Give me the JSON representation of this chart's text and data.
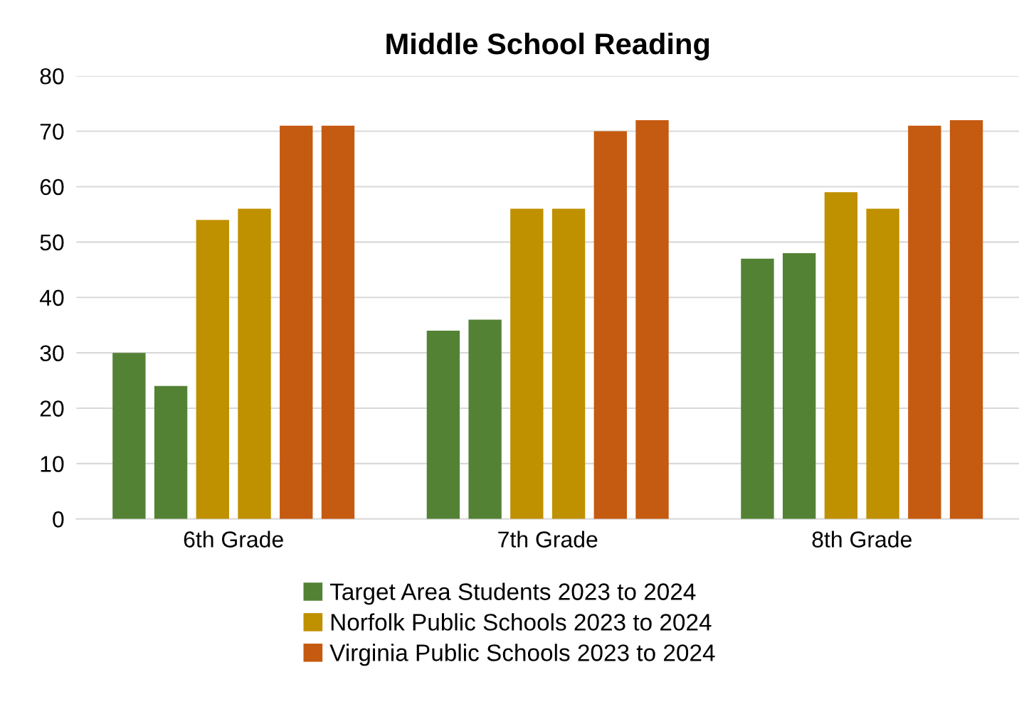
{
  "chart_data": {
    "type": "bar",
    "title": "Middle School Reading",
    "categories": [
      "6th Grade",
      "7th Grade",
      "8th Grade"
    ],
    "series": [
      {
        "name": "Target Area Students 2023 to 2024",
        "color": "#548235",
        "values": [
          30,
          34,
          47
        ]
      },
      {
        "color": "#548235",
        "values": [
          24,
          36,
          48
        ]
      },
      {
        "name": "Norfolk Public Schools 2023 to 2024",
        "color": "#bf9000",
        "values": [
          54,
          56,
          59
        ]
      },
      {
        "color": "#bf9000",
        "values": [
          56,
          56,
          56
        ]
      },
      {
        "name": "Virginia Public Schools 2023 to 2024",
        "color": "#c55a11",
        "values": [
          71,
          70,
          71
        ]
      },
      {
        "color": "#c55a11",
        "values": [
          71,
          72,
          72
        ]
      }
    ],
    "ylim": [
      0,
      80
    ],
    "yticks": [
      0,
      10,
      20,
      30,
      40,
      50,
      60,
      70,
      80
    ],
    "grid": "y",
    "legend": "bottom"
  }
}
